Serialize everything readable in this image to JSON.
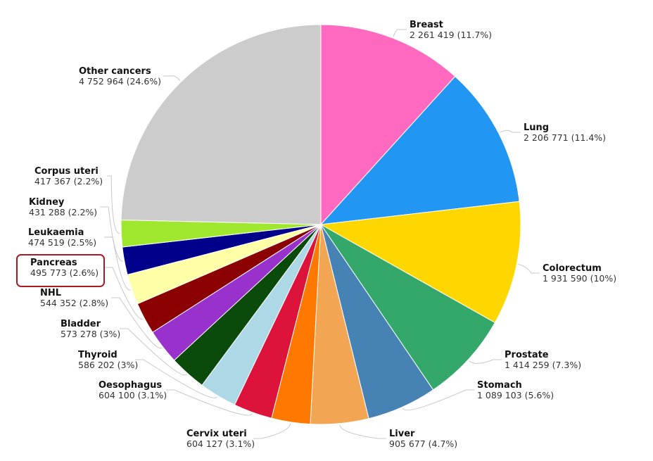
{
  "chart_data": {
    "type": "pie",
    "start_angle_deg": 0,
    "direction": "clockwise",
    "highlighted": "Pancreas",
    "slices": [
      {
        "name": "Breast",
        "value": 2261419,
        "value_label": "2 261 419",
        "pct_label": "(11.7%)",
        "color": "#ff69c0"
      },
      {
        "name": "Lung",
        "value": 2206771,
        "value_label": "2 206 771",
        "pct_label": "(11.4%)",
        "color": "#2196f3"
      },
      {
        "name": "Colorectum",
        "value": 1931590,
        "value_label": "1 931 590",
        "pct_label": "(10%)",
        "color": "#ffd700"
      },
      {
        "name": "Prostate",
        "value": 1414259,
        "value_label": "1 414 259",
        "pct_label": "(7.3%)",
        "color": "#33a86a"
      },
      {
        "name": "Stomach",
        "value": 1089103,
        "value_label": "1 089 103",
        "pct_label": "(5.6%)",
        "color": "#4682b4"
      },
      {
        "name": "Liver",
        "value": 905677,
        "value_label": "905 677",
        "pct_label": "(4.7%)",
        "color": "#f2a553"
      },
      {
        "name": "Cervix uteri",
        "value": 604127,
        "value_label": "604 127",
        "pct_label": "(3.1%)",
        "color": "#ff7800"
      },
      {
        "name": "Oesophagus",
        "value": 604100,
        "value_label": "604 100",
        "pct_label": "(3.1%)",
        "color": "#dc143c"
      },
      {
        "name": "Thyroid",
        "value": 586202,
        "value_label": "586 202",
        "pct_label": "(3%)",
        "color": "#add8e6"
      },
      {
        "name": "Bladder",
        "value": 573278,
        "value_label": "573 278",
        "pct_label": "(3%)",
        "color": "#0a4a0a"
      },
      {
        "name": "NHL",
        "value": 544352,
        "value_label": "544 352",
        "pct_label": "(2.8%)",
        "color": "#9932cc"
      },
      {
        "name": "Pancreas",
        "value": 495773,
        "value_label": "495 773",
        "pct_label": "(2.6%)",
        "color": "#8b0000"
      },
      {
        "name": "Leukaemia",
        "value": 474519,
        "value_label": "474 519",
        "pct_label": "(2.5%)",
        "color": "#ffffa8"
      },
      {
        "name": "Kidney",
        "value": 431288,
        "value_label": "431 288",
        "pct_label": "(2.2%)",
        "color": "#00008b"
      },
      {
        "name": "Corpus uteri",
        "value": 417367,
        "value_label": "417 367",
        "pct_label": "(2.2%)",
        "color": "#a0e830"
      },
      {
        "name": "Other cancers",
        "value": 4752964,
        "value_label": "4 752 964",
        "pct_label": "(24.6%)",
        "color": "#cccccc"
      }
    ]
  },
  "colors": {
    "highlight_border": "#a51d24",
    "leader_line": "#c8c8c8"
  }
}
